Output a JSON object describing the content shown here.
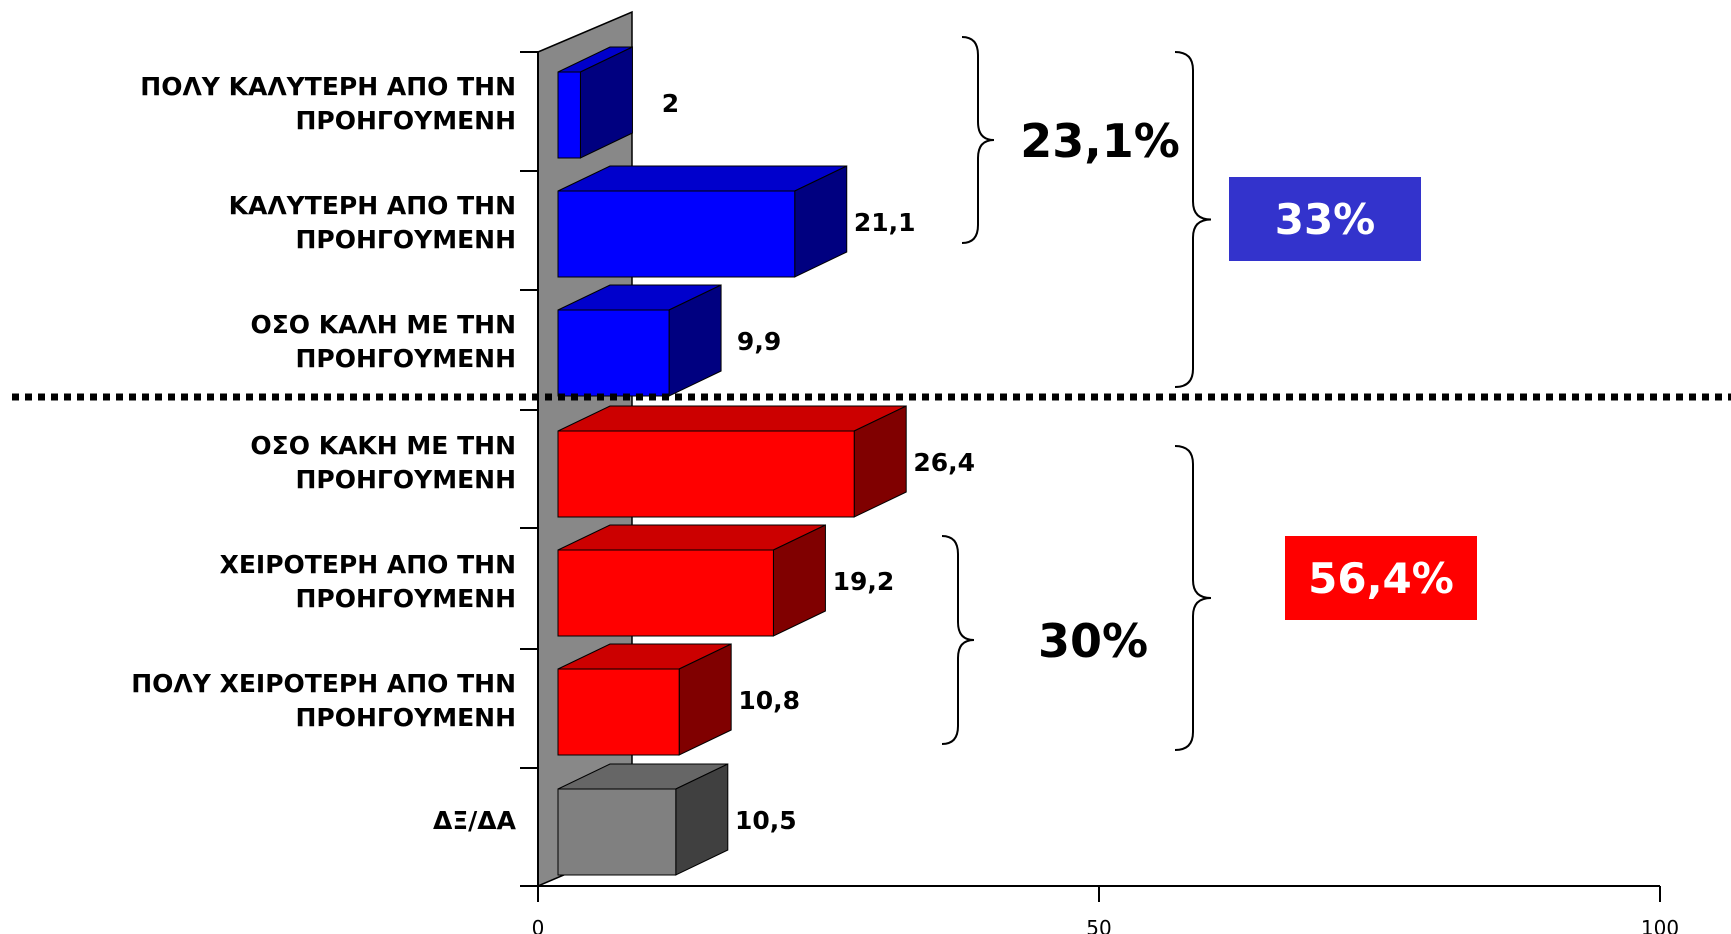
{
  "chart_data": {
    "type": "bar",
    "orientation": "horizontal",
    "categories": [
      [
        "ΠΟΛΥ ΚΑΛΥΤΕΡΗ ΑΠΟ ΤΗΝ",
        "ΠΡΟΗΓΟΥΜΕΝΗ"
      ],
      [
        "ΚΑΛΥΤΕΡΗ ΑΠΟ ΤΗΝ",
        "ΠΡΟΗΓΟΥΜΕΝΗ"
      ],
      [
        "ΟΣΟ ΚΑΛΗ ΜΕ ΤΗΝ",
        "ΠΡΟΗΓΟΥΜΕΝΗ"
      ],
      [
        "ΟΣΟ ΚΑΚΗ ΜΕ ΤΗΝ",
        "ΠΡΟΗΓΟΥΜΕΝΗ"
      ],
      [
        "ΧΕΙΡΟΤΕΡΗ ΑΠΟ ΤΗΝ",
        "ΠΡΟΗΓΟΥΜΕΝΗ"
      ],
      [
        "ΠΟΛΥ ΧΕΙΡΟΤΕΡΗ ΑΠΟ ΤΗΝ",
        "ΠΡΟΗΓΟΥΜΕΝΗ"
      ],
      [
        "ΔΞ/ΔΑ"
      ]
    ],
    "values": [
      2,
      21.1,
      9.9,
      26.4,
      19.2,
      10.8,
      10.5
    ],
    "value_labels": [
      "2",
      "21,1",
      "9,9",
      "26,4",
      "19,2",
      "10,8",
      "10,5"
    ],
    "bar_colors": [
      "blue",
      "blue",
      "blue",
      "red",
      "red",
      "red",
      "gray"
    ],
    "xlim": [
      0,
      100
    ],
    "xticks": [
      "0",
      "50",
      "100"
    ],
    "grid": false,
    "style": "3d",
    "groups": [
      {
        "label": "23,1%",
        "from": 0,
        "to": 1,
        "type": "brace"
      },
      {
        "label": "30%",
        "from": 4,
        "to": 5,
        "type": "brace"
      },
      {
        "label": "33%",
        "from": 0,
        "to": 2,
        "type": "box",
        "color": "blue"
      },
      {
        "label": "56,4%",
        "from": 3,
        "to": 5,
        "type": "box",
        "color": "red"
      }
    ]
  },
  "colors": {
    "blue": {
      "front": "#0000ff",
      "top": "#0000cc",
      "side": "#000080"
    },
    "red": {
      "front": "#ff0000",
      "top": "#cc0000",
      "side": "#800000"
    },
    "gray": {
      "front": "#808080",
      "top": "#666666",
      "side": "#404040"
    },
    "blue_box": "#3333cc",
    "red_box": "#ff0000",
    "wall": "#888888",
    "separator": "#000000"
  }
}
